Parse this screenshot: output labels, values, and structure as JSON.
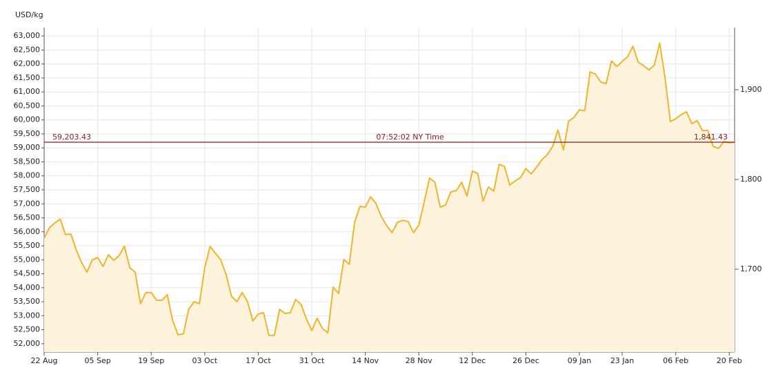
{
  "chart_data": {
    "type": "area",
    "y_axis_label": "USD/kg",
    "categories": [
      "22 Aug",
      null,
      null,
      null,
      null,
      null,
      null,
      null,
      null,
      null,
      "05 Sep",
      null,
      null,
      null,
      null,
      null,
      null,
      null,
      null,
      null,
      "19 Sep",
      null,
      null,
      null,
      null,
      null,
      null,
      null,
      null,
      null,
      "03 Oct",
      null,
      null,
      null,
      null,
      null,
      null,
      null,
      null,
      null,
      "17 Oct",
      null,
      null,
      null,
      null,
      null,
      null,
      null,
      null,
      null,
      "31 Oct",
      null,
      null,
      null,
      null,
      null,
      null,
      null,
      null,
      null,
      "14 Nov",
      null,
      null,
      null,
      null,
      null,
      null,
      null,
      null,
      null,
      "28 Nov",
      null,
      null,
      null,
      null,
      null,
      null,
      null,
      null,
      null,
      "12 Dec",
      null,
      null,
      null,
      null,
      null,
      null,
      null,
      null,
      null,
      "26 Dec",
      null,
      null,
      null,
      null,
      null,
      null,
      null,
      null,
      null,
      "09 Jan",
      null,
      null,
      null,
      null,
      null,
      null,
      null,
      "23 Jan",
      null,
      null,
      null,
      null,
      null,
      null,
      null,
      null,
      null,
      "06 Feb",
      null,
      null,
      null,
      null,
      null,
      null,
      null,
      null,
      null,
      "20 Feb",
      null
    ],
    "values": [
      55770,
      56150,
      56320,
      56450,
      55900,
      55920,
      55350,
      54900,
      54560,
      55000,
      55080,
      54760,
      55180,
      54980,
      55150,
      55480,
      54710,
      54560,
      53430,
      53830,
      53830,
      53550,
      53550,
      53750,
      52840,
      52320,
      52350,
      53230,
      53500,
      53430,
      54710,
      55480,
      55230,
      55000,
      54470,
      53700,
      53500,
      53830,
      53500,
      52810,
      53060,
      53110,
      52300,
      52300,
      53230,
      53080,
      53110,
      53580,
      53400,
      52890,
      52470,
      52910,
      52540,
      52390,
      54020,
      53800,
      55010,
      54840,
      56340,
      56910,
      56880,
      57250,
      57010,
      56540,
      56220,
      55970,
      56340,
      56410,
      56370,
      55970,
      56240,
      57060,
      57920,
      57770,
      56880,
      56960,
      57430,
      57470,
      57770,
      57280,
      58170,
      58090,
      57100,
      57600,
      57450,
      58410,
      58340,
      57670,
      57820,
      57940,
      58260,
      58070,
      58310,
      58580,
      58760,
      59050,
      59640,
      58930,
      59960,
      60090,
      60360,
      60330,
      61720,
      61640,
      61350,
      61300,
      62110,
      61910,
      62090,
      62260,
      62630,
      62060,
      61940,
      61790,
      61960,
      62750,
      61520,
      59940,
      60040,
      60190,
      60290,
      59870,
      59970,
      59620,
      59620,
      59050,
      58980,
      59230,
      59180,
      59203.43
    ],
    "color": "#f0b429",
    "fill_color": "#fdf3dc",
    "ylim": [
      51700,
      63300
    ],
    "yticks": [
      {
        "value": 52000,
        "label": "52,000"
      },
      {
        "value": 52500,
        "label": "52,500"
      },
      {
        "value": 53000,
        "label": "53,000"
      },
      {
        "value": 53500,
        "label": "53,500"
      },
      {
        "value": 54000,
        "label": "54,000"
      },
      {
        "value": 54500,
        "label": "54,500"
      },
      {
        "value": 55000,
        "label": "55,000"
      },
      {
        "value": 55500,
        "label": "55,500"
      },
      {
        "value": 56000,
        "label": "56,000"
      },
      {
        "value": 56500,
        "label": "56,500"
      },
      {
        "value": 57000,
        "label": "57,000"
      },
      {
        "value": 57500,
        "label": "57,500"
      },
      {
        "value": 58000,
        "label": "58,000"
      },
      {
        "value": 58500,
        "label": "58,500"
      },
      {
        "value": 59000,
        "label": "59,000"
      },
      {
        "value": 59500,
        "label": "59,500"
      },
      {
        "value": 60000,
        "label": "60,000"
      },
      {
        "value": 60500,
        "label": "60,500"
      },
      {
        "value": 61000,
        "label": "61,000"
      },
      {
        "value": 61500,
        "label": "61,500"
      },
      {
        "value": 62000,
        "label": "62,000"
      },
      {
        "value": 62500,
        "label": "62,500"
      },
      {
        "value": 63000,
        "label": "63,000"
      }
    ],
    "y2lim": [
      1607.7,
      1969.2
    ],
    "y2ticks": [
      {
        "value": 1700,
        "label": "1,700"
      },
      {
        "value": 1800,
        "label": "1,800"
      },
      {
        "value": 1900,
        "label": "1,900"
      }
    ],
    "grid": true,
    "reference": {
      "value": 59203.43,
      "label": "59,203.43",
      "time": "07:52:02 NY Time",
      "y2_value": 1841.43,
      "y2_label": "1,841.43",
      "color": "#8b1a1a"
    }
  }
}
